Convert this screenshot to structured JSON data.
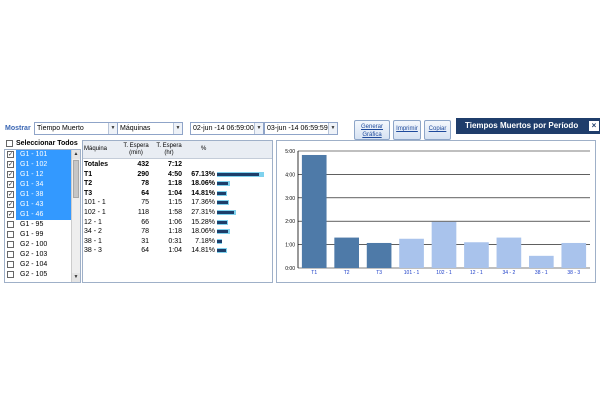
{
  "toolbar": {
    "mostrar_label": "Mostrar",
    "metric_select": "Tiempo Muerto",
    "group_select": "Máquinas",
    "date_from": "02-jun -14 06:59:00",
    "date_to": "03-jun -14 06:59:59",
    "btn_generar_line1": "Generar",
    "btn_generar_line2": "Gráfica",
    "btn_imprimir": "Imprimir",
    "btn_copiar": "Copiar",
    "title": "Tiempos Muertos por Período",
    "close": "×"
  },
  "machines": {
    "select_all_label": "Seleccionar Todos",
    "items": [
      {
        "label": "G1 - 101",
        "checked": true
      },
      {
        "label": "G1 - 102",
        "checked": true
      },
      {
        "label": "G1 - 12",
        "checked": true
      },
      {
        "label": "G1 - 34",
        "checked": true
      },
      {
        "label": "G1 - 38",
        "checked": true
      },
      {
        "label": "G1 - 43",
        "checked": true
      },
      {
        "label": "G1 - 46",
        "checked": true
      },
      {
        "label": "G1 - 95",
        "checked": false
      },
      {
        "label": "G1 - 99",
        "checked": false
      },
      {
        "label": "G2 - 100",
        "checked": false
      },
      {
        "label": "G2 - 103",
        "checked": false
      },
      {
        "label": "G2 - 104",
        "checked": false
      },
      {
        "label": "G2 - 105",
        "checked": false
      }
    ]
  },
  "table": {
    "headers": {
      "maquina": "Máquina",
      "espera_min_1": "T. Espera",
      "espera_min_2": "(min)",
      "espera_hr_1": "T. Espera",
      "espera_hr_2": "(hr)",
      "pct": "%"
    },
    "rows": [
      {
        "name": "Totales",
        "min": "432",
        "hr": "7:12",
        "pct": "",
        "bar": 0,
        "bold": true
      },
      {
        "name": "T1",
        "min": "290",
        "hr": "4:50",
        "pct": "67.13%",
        "bar": 67.13,
        "bold": true
      },
      {
        "name": "T2",
        "min": "78",
        "hr": "1:18",
        "pct": "18.06%",
        "bar": 18.06,
        "bold": true
      },
      {
        "name": "T3",
        "min": "64",
        "hr": "1:04",
        "pct": "14.81%",
        "bar": 14.81,
        "bold": true
      },
      {
        "name": "101 - 1",
        "min": "75",
        "hr": "1:15",
        "pct": "17.36%",
        "bar": 17.36,
        "bold": false
      },
      {
        "name": "102 - 1",
        "min": "118",
        "hr": "1:58",
        "pct": "27.31%",
        "bar": 27.31,
        "bold": false
      },
      {
        "name": "12 - 1",
        "min": "66",
        "hr": "1:06",
        "pct": "15.28%",
        "bar": 15.28,
        "bold": false
      },
      {
        "name": "34 - 2",
        "min": "78",
        "hr": "1:18",
        "pct": "18.06%",
        "bar": 18.06,
        "bold": false
      },
      {
        "name": "38 - 1",
        "min": "31",
        "hr": "0:31",
        "pct": "7.18%",
        "bar": 7.18,
        "bold": false
      },
      {
        "name": "38 - 3",
        "min": "64",
        "hr": "1:04",
        "pct": "14.81%",
        "bar": 14.81,
        "bold": false
      }
    ]
  },
  "chart_data": {
    "type": "bar",
    "title": "",
    "xlabel": "",
    "ylabel": "",
    "ylim": [
      0,
      5
    ],
    "yticks": [
      "0:00",
      "1:00",
      "2:00",
      "3:00",
      "4:00",
      "5:00"
    ],
    "categories": [
      "T1",
      "T2",
      "T3",
      "101 - 1",
      "102 - 1",
      "12 - 1",
      "34 - 2",
      "38 - 1",
      "38 - 3"
    ],
    "values": [
      4.83,
      1.3,
      1.07,
      1.25,
      1.97,
      1.1,
      1.3,
      0.52,
      1.07
    ],
    "grid": true,
    "colors": {
      "turno": "#4e7aa8",
      "machine": "#a9c3ec"
    }
  }
}
